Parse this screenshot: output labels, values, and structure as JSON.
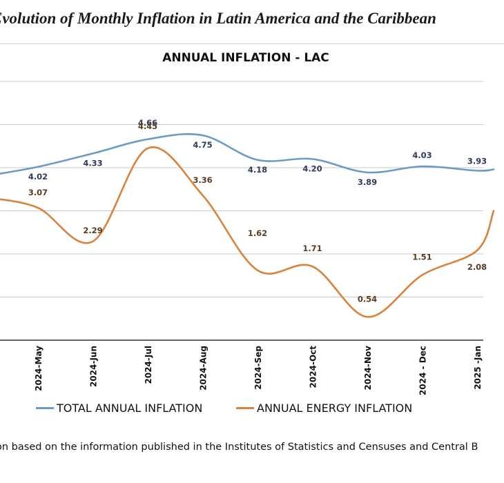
{
  "page": {
    "title": "Evolution of Monthly Inflation in Latin America and the Caribbean",
    "source_note": "on based on the information published in the Institutes of Statistics and Censuses and Central B"
  },
  "chart_data": {
    "type": "line",
    "title": "ANNUAL INFLATION - LAC",
    "xlabel": "",
    "ylabel": "",
    "categories": [
      "2024-May",
      "2024-Jun",
      "2024-Jul",
      "2024-Aug",
      "2024-Sep",
      "2024-Oct",
      "2024-Nov",
      "2024 - Dec",
      "2025 -Jan"
    ],
    "series": [
      {
        "name": "TOTAL ANNUAL INFLATION",
        "color": "#6a9bc7",
        "values": [
          4.02,
          4.33,
          4.66,
          4.75,
          4.18,
          4.2,
          3.89,
          4.03,
          3.93
        ],
        "labels": [
          "4.02",
          "4.33",
          "4.66",
          "4.75",
          "4.18",
          "4.20",
          "3.89",
          "4.03",
          "3.93"
        ]
      },
      {
        "name": "ANNUAL ENERGY INFLATION",
        "color": "#d9823b",
        "values": [
          3.07,
          2.29,
          4.45,
          3.36,
          1.62,
          1.71,
          0.54,
          1.51,
          2.08
        ],
        "labels": [
          "3.07",
          "2.29",
          "4.45",
          "3.36",
          "1.62",
          "1.71",
          "0.54",
          "1.51",
          "2.08"
        ]
      }
    ],
    "ylim": [
      0.0,
      6.0
    ],
    "grid": true,
    "legend_position": "bottom"
  }
}
